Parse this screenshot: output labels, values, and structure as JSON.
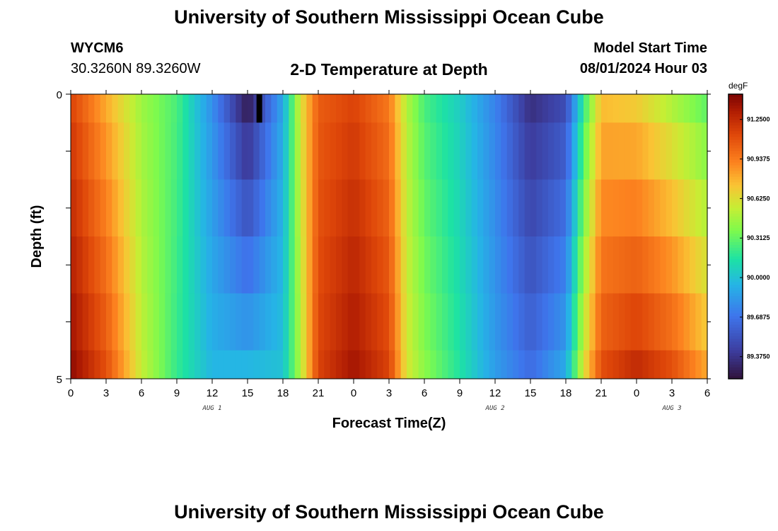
{
  "page": {
    "title": "University of Southern Mississippi Ocean Cube",
    "footer_title": "University of Southern Mississippi Ocean Cube",
    "station": "WYCM6",
    "coords": "30.3260N  89.3260W",
    "subtitle": "2-D Temperature at Depth",
    "model_label": "Model Start Time",
    "model_time": "08/01/2024 Hour 03"
  },
  "chart_data": {
    "type": "heatmap",
    "title": "2-D Temperature at Depth",
    "xlabel": "Forecast Time(Z)",
    "ylabel": "Depth (ft)",
    "x_range_hours": [
      0,
      54
    ],
    "y_range_ft": [
      0,
      5
    ],
    "x_ticks": [
      {
        "hour": 0,
        "label": "0"
      },
      {
        "hour": 3,
        "label": "3"
      },
      {
        "hour": 6,
        "label": "6"
      },
      {
        "hour": 9,
        "label": "9"
      },
      {
        "hour": 12,
        "label": "12"
      },
      {
        "hour": 15,
        "label": "15"
      },
      {
        "hour": 18,
        "label": "18"
      },
      {
        "hour": 21,
        "label": "21"
      },
      {
        "hour": 24,
        "label": "0"
      },
      {
        "hour": 27,
        "label": "3"
      },
      {
        "hour": 30,
        "label": "6"
      },
      {
        "hour": 33,
        "label": "9"
      },
      {
        "hour": 36,
        "label": "12"
      },
      {
        "hour": 39,
        "label": "15"
      },
      {
        "hour": 42,
        "label": "18"
      },
      {
        "hour": 45,
        "label": "21"
      },
      {
        "hour": 48,
        "label": "0"
      },
      {
        "hour": 51,
        "label": "3"
      },
      {
        "hour": 54,
        "label": "6"
      }
    ],
    "day_labels": [
      {
        "hour": 12,
        "label": "AUG 1"
      },
      {
        "hour": 36,
        "label": "AUG 2"
      },
      {
        "hour": 51,
        "label": "AUG 3"
      }
    ],
    "y_ticks": [
      {
        "depth": 0,
        "label": "0"
      },
      {
        "depth": 5,
        "label": "5"
      }
    ],
    "depth_levels_ft": [
      0,
      1,
      2,
      3,
      4,
      5
    ],
    "colorbar": {
      "units": "degF",
      "min": 89.2,
      "max": 91.45,
      "tick_values": [
        91.25,
        90.9375,
        90.625,
        90.3125,
        90.0,
        89.6875,
        89.375
      ],
      "tick_labels": [
        "91.2500",
        "90.9375",
        "90.6250",
        "90.3125",
        "90.0000",
        "89.6875",
        "89.3750"
      ]
    },
    "surface_temperature_profile_degF": [
      {
        "hour": 0,
        "value": 91.15
      },
      {
        "hour": 3,
        "value": 90.8
      },
      {
        "hour": 6,
        "value": 90.45
      },
      {
        "hour": 9,
        "value": 90.25
      },
      {
        "hour": 12,
        "value": 89.8
      },
      {
        "hour": 15,
        "value": 89.25
      },
      {
        "hour": 18,
        "value": 89.9
      },
      {
        "hour": 19.5,
        "value": 90.6
      },
      {
        "hour": 21,
        "value": 91.05
      },
      {
        "hour": 24,
        "value": 91.15
      },
      {
        "hour": 27,
        "value": 90.95
      },
      {
        "hour": 28.5,
        "value": 90.5
      },
      {
        "hour": 30,
        "value": 90.25
      },
      {
        "hour": 33,
        "value": 90.05
      },
      {
        "hour": 36,
        "value": 89.75
      },
      {
        "hour": 39,
        "value": 89.35
      },
      {
        "hour": 42,
        "value": 89.5
      },
      {
        "hour": 43.5,
        "value": 90.2
      },
      {
        "hour": 45,
        "value": 90.75
      },
      {
        "hour": 48,
        "value": 90.7
      },
      {
        "hour": 51,
        "value": 90.5
      },
      {
        "hour": 54,
        "value": 90.3
      }
    ],
    "bottom_temperature_profile_degF": [
      {
        "hour": 0,
        "value": 91.4
      },
      {
        "hour": 3,
        "value": 91.1
      },
      {
        "hour": 6,
        "value": 90.55
      },
      {
        "hour": 9,
        "value": 90.2
      },
      {
        "hour": 12,
        "value": 89.95
      },
      {
        "hour": 15,
        "value": 89.95
      },
      {
        "hour": 18,
        "value": 90.0
      },
      {
        "hour": 19.5,
        "value": 90.5
      },
      {
        "hour": 21,
        "value": 91.15
      },
      {
        "hour": 24,
        "value": 91.35
      },
      {
        "hour": 27,
        "value": 91.15
      },
      {
        "hour": 28.5,
        "value": 90.6
      },
      {
        "hour": 30,
        "value": 90.4
      },
      {
        "hour": 33,
        "value": 90.15
      },
      {
        "hour": 36,
        "value": 89.85
      },
      {
        "hour": 39,
        "value": 89.65
      },
      {
        "hour": 42,
        "value": 89.9
      },
      {
        "hour": 43.5,
        "value": 90.6
      },
      {
        "hour": 45,
        "value": 91.1
      },
      {
        "hour": 48,
        "value": 91.25
      },
      {
        "hour": 51,
        "value": 91.1
      },
      {
        "hour": 54,
        "value": 90.8
      }
    ],
    "missing_data_marker": {
      "hour": 16,
      "depth_from": 0,
      "depth_to": 0.5
    }
  }
}
